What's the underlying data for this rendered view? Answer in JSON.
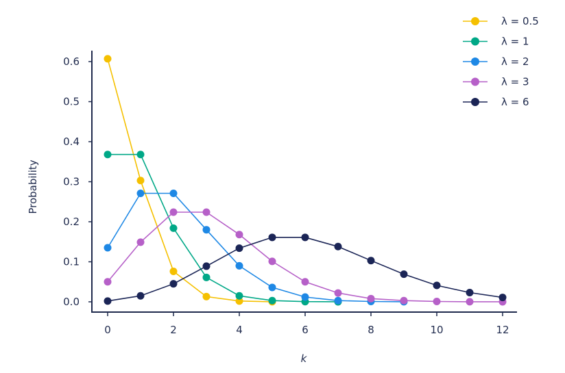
{
  "chart_data": {
    "type": "line",
    "title": "",
    "xlabel": "k",
    "ylabel": "Probability",
    "xlim": [
      -0.5,
      12.5
    ],
    "ylim": [
      -0.015,
      0.65
    ],
    "xticks": [
      0,
      2,
      4,
      6,
      8,
      10,
      12
    ],
    "xtick_labels": [
      "0",
      "2",
      "4",
      "6",
      "8",
      "10",
      "12"
    ],
    "yticks": [
      0.0,
      0.1,
      0.2,
      0.3,
      0.4,
      0.5,
      0.6
    ],
    "ytick_labels": [
      "0.0",
      "0.1",
      "0.2",
      "0.3",
      "0.4",
      "0.5",
      "0.6"
    ],
    "grid": false,
    "legend_position": "top-right",
    "series": [
      {
        "name": "λ = 0.5",
        "color": "#f5c000",
        "x": [
          0,
          1,
          2,
          3,
          4,
          5
        ],
        "y": [
          0.607,
          0.303,
          0.076,
          0.013,
          0.002,
          0.0002
        ]
      },
      {
        "name": "λ = 1",
        "color": "#00a887",
        "x": [
          0,
          1,
          2,
          3,
          4,
          5,
          6,
          7
        ],
        "y": [
          0.368,
          0.368,
          0.184,
          0.061,
          0.015,
          0.003,
          0.0005,
          0.0001
        ]
      },
      {
        "name": "λ = 2",
        "color": "#1e88e5",
        "x": [
          0,
          1,
          2,
          3,
          4,
          5,
          6,
          7,
          8,
          9
        ],
        "y": [
          0.135,
          0.271,
          0.271,
          0.18,
          0.09,
          0.036,
          0.012,
          0.003,
          0.0009,
          0.0002
        ]
      },
      {
        "name": "λ = 3",
        "color": "#b660c8",
        "x": [
          0,
          1,
          2,
          3,
          4,
          5,
          6,
          7,
          8,
          9,
          10,
          11,
          12
        ],
        "y": [
          0.05,
          0.149,
          0.224,
          0.224,
          0.168,
          0.101,
          0.05,
          0.022,
          0.008,
          0.003,
          0.0008,
          0.0002,
          0.0001
        ]
      },
      {
        "name": "λ = 6",
        "color": "#1b2556",
        "x": [
          0,
          1,
          2,
          3,
          4,
          5,
          6,
          7,
          8,
          9,
          10,
          11,
          12
        ],
        "y": [
          0.002,
          0.015,
          0.045,
          0.089,
          0.134,
          0.161,
          0.161,
          0.138,
          0.103,
          0.069,
          0.041,
          0.023,
          0.011
        ]
      }
    ]
  }
}
